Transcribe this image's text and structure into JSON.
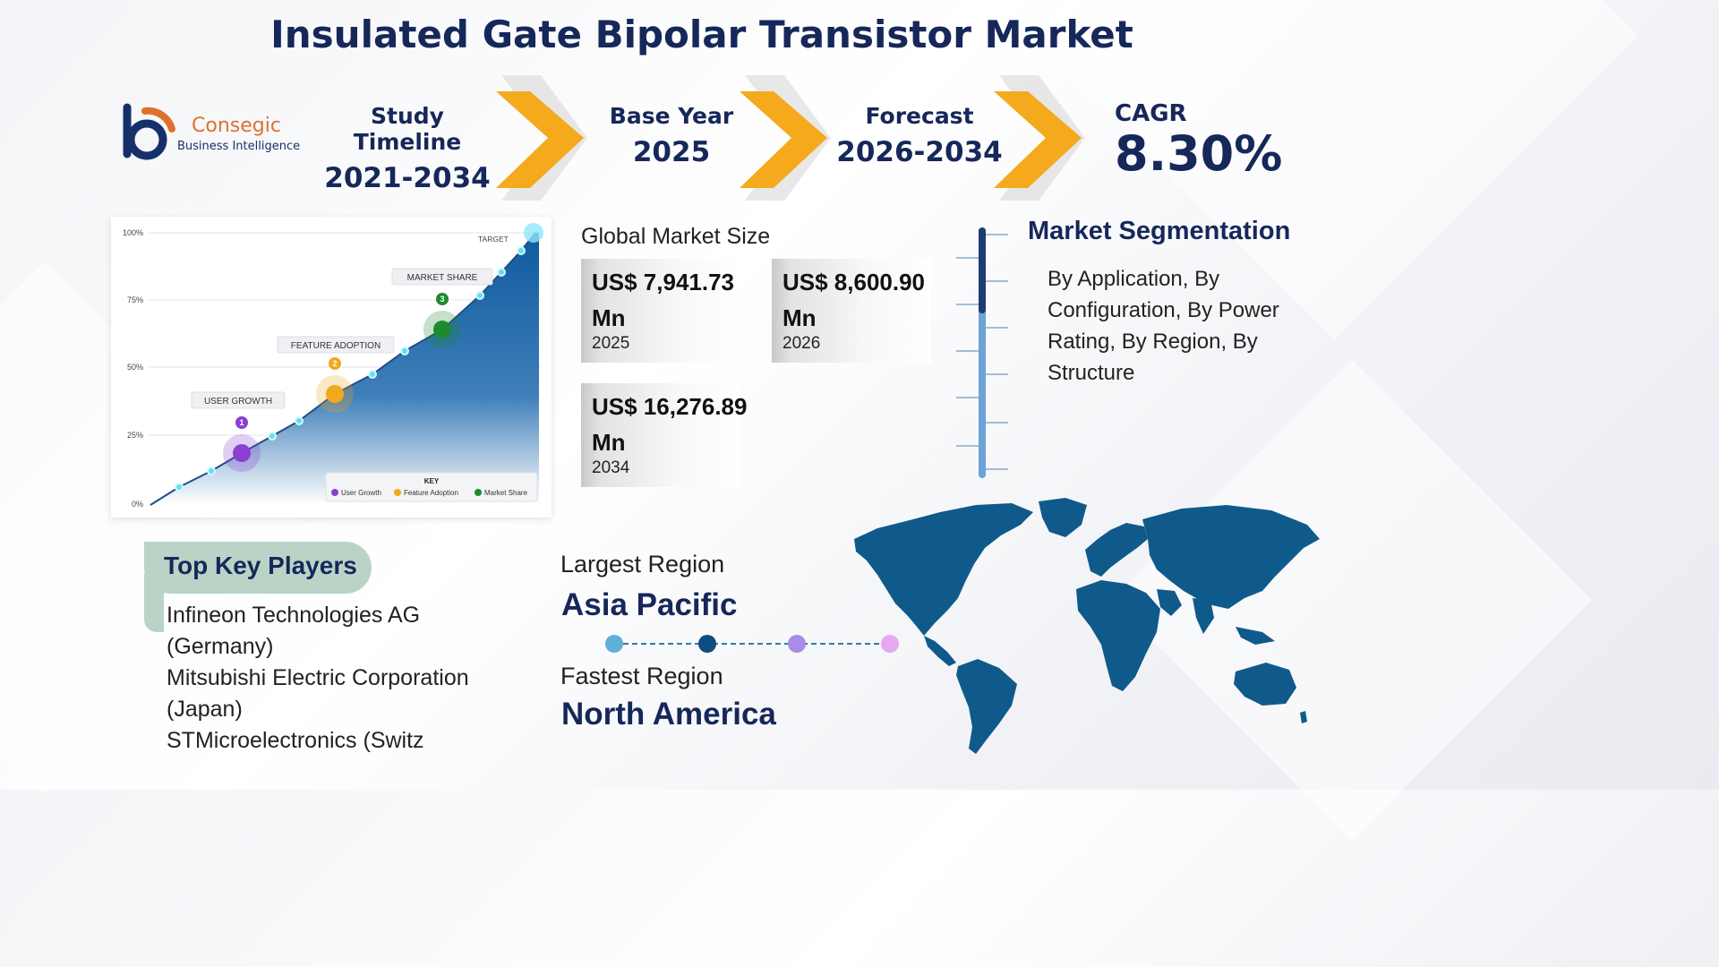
{
  "title": "Insulated Gate Bipolar Transistor Market",
  "logo": {
    "name": "Consegic",
    "subtitle": "Business Intelligence"
  },
  "timeline": {
    "study": {
      "label": "Study Timeline",
      "value": "2021-2034"
    },
    "base": {
      "label": "Base Year",
      "value": "2025"
    },
    "forecast": {
      "label": "Forecast",
      "value": "2026-2034"
    }
  },
  "cagr": {
    "label": "CAGR",
    "value": "8.30%"
  },
  "illustration": {
    "y_ticks": [
      "100%",
      "75%",
      "50%",
      "25%",
      "0%"
    ],
    "target_label": "TARGET",
    "milestones": [
      {
        "number": "1",
        "label": "USER GROWTH",
        "color": "#8a3fd1"
      },
      {
        "number": "2",
        "label": "FEATURE ADOPTION",
        "color": "#f2a81d"
      },
      {
        "number": "3",
        "label": "MARKET SHARE",
        "color": "#1e8a2e"
      }
    ],
    "key": {
      "title": "KEY",
      "items": [
        {
          "label": "User Growth",
          "color": "#8a3fd1"
        },
        {
          "label": "Feature Adoption",
          "color": "#f2a81d"
        },
        {
          "label": "Market Share",
          "color": "#1e8a2e"
        }
      ]
    }
  },
  "market_size": {
    "title": "Global Market Size",
    "cards": [
      {
        "value": "US$ 7,941.73 Mn",
        "year": "2025"
      },
      {
        "value": "US$ 8,600.90 Mn",
        "year": "2026"
      },
      {
        "value": "US$ 16,276.89 Mn",
        "year": "2034"
      }
    ]
  },
  "segmentation": {
    "title": "Market Segmentation",
    "text": "By Application, By Configuration, By Power Rating, By Region, By Structure"
  },
  "key_players": {
    "title": "Top Key Players",
    "items": [
      "Infineon Technologies AG (Germany)",
      "Mitsubishi Electric Corporation (Japan)",
      "STMicroelectronics (Switz"
    ]
  },
  "regions": {
    "largest_label": "Largest Region",
    "largest_value": "Asia Pacific",
    "fastest_label": "Fastest Region",
    "fastest_value": "North America",
    "dot_colors": [
      "#5fb0d8",
      "#0f4c80",
      "#a98be8",
      "#e7a8ef"
    ]
  },
  "colors": {
    "navy": "#16275a",
    "chevron": "#f5a91c",
    "map": "#0f5a8a"
  }
}
